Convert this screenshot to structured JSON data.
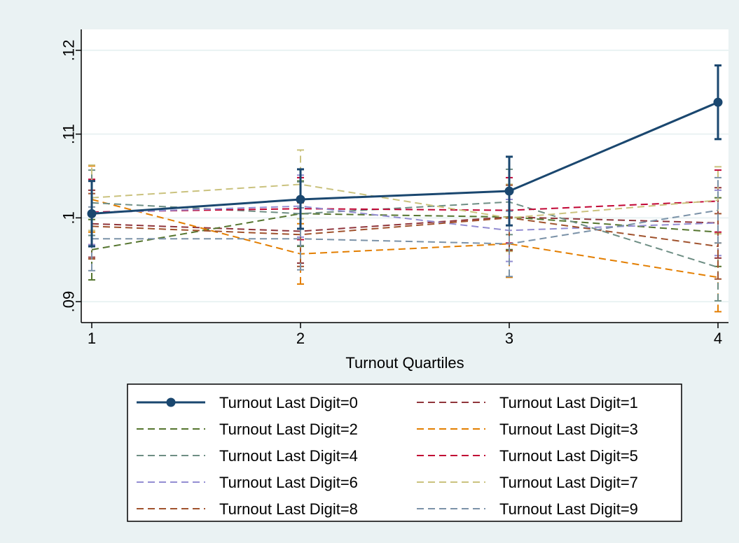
{
  "chart_data": {
    "type": "line",
    "title": "",
    "xlabel": "Turnout Quartiles",
    "ylabel": "",
    "x": [
      1,
      2,
      3,
      4
    ],
    "xlim": [
      1,
      4
    ],
    "ylim": [
      0.0875,
      0.1225
    ],
    "xticks": [
      "1",
      "2",
      "3",
      "4"
    ],
    "yticks": [
      ".09",
      ".1",
      ".11",
      ".12"
    ],
    "ytick_values": [
      0.09,
      0.1,
      0.11,
      0.12
    ],
    "grid": true,
    "legend_position": "bottom",
    "series": [
      {
        "name": "Turnout Last Digit=0",
        "color": "#1a476f",
        "style": "solid-marker",
        "values": [
          0.1005,
          0.1022,
          0.1032,
          0.1138
        ],
        "ci_low": [
          0.0966,
          0.0987,
          0.0991,
          0.1094
        ],
        "ci_high": [
          0.1044,
          0.1058,
          0.1073,
          0.1182
        ]
      },
      {
        "name": "Turnout Last Digit=1",
        "color": "#90353b",
        "style": "dash",
        "values": [
          0.0993,
          0.0984,
          0.1001,
          0.0994
        ],
        "ci_low": [
          0.0953,
          0.0946,
          0.0962,
          0.0952
        ],
        "ci_high": [
          0.1033,
          0.1022,
          0.104,
          0.1036
        ]
      },
      {
        "name": "Turnout Last Digit=2",
        "color": "#55752f",
        "style": "dash",
        "values": [
          0.0962,
          0.1005,
          0.1001,
          0.0983
        ],
        "ci_low": [
          0.0926,
          0.0966,
          0.0962,
          0.0942
        ],
        "ci_high": [
          0.0998,
          0.1044,
          0.104,
          0.1024
        ]
      },
      {
        "name": "Turnout Last Digit=3",
        "color": "#e37e00",
        "style": "dash",
        "values": [
          0.1022,
          0.0957,
          0.0969,
          0.0929
        ],
        "ci_low": [
          0.0983,
          0.0921,
          0.0929,
          0.0888
        ],
        "ci_high": [
          0.1062,
          0.0993,
          0.1009,
          0.097
        ]
      },
      {
        "name": "Turnout Last Digit=4",
        "color": "#6e8e84",
        "style": "dash",
        "values": [
          0.1018,
          0.1005,
          0.1019,
          0.0941
        ],
        "ci_low": [
          0.0979,
          0.0967,
          0.098,
          0.0901
        ],
        "ci_high": [
          0.1057,
          0.1043,
          0.1058,
          0.0981
        ]
      },
      {
        "name": "Turnout Last Digit=5",
        "color": "#c10534",
        "style": "dash",
        "values": [
          0.1007,
          0.1011,
          0.1009,
          0.102
        ],
        "ci_low": [
          0.0968,
          0.0974,
          0.097,
          0.0983
        ],
        "ci_high": [
          0.1046,
          0.1048,
          0.1048,
          0.1057
        ]
      },
      {
        "name": "Turnout Last Digit=6",
        "color": "#938dd2",
        "style": "dash",
        "values": [
          0.1006,
          0.1014,
          0.0985,
          0.0994
        ],
        "ci_low": [
          0.0968,
          0.0977,
          0.0948,
          0.0955
        ],
        "ci_high": [
          0.1044,
          0.1051,
          0.1022,
          0.1033
        ]
      },
      {
        "name": "Turnout Last Digit=7",
        "color": "#cac27e",
        "style": "dash",
        "values": [
          0.1024,
          0.104,
          0.1,
          0.1021
        ],
        "ci_low": [
          0.0985,
          0.0999,
          0.096,
          0.0981
        ],
        "ci_high": [
          0.1063,
          0.1081,
          0.104,
          0.1061
        ]
      },
      {
        "name": "Turnout Last Digit=8",
        "color": "#a0522d",
        "style": "dash",
        "values": [
          0.099,
          0.098,
          0.1,
          0.0966
        ],
        "ci_low": [
          0.0951,
          0.0942,
          0.0961,
          0.0927
        ],
        "ci_high": [
          0.1029,
          0.1018,
          0.1039,
          0.1005
        ]
      },
      {
        "name": "Turnout Last Digit=9",
        "color": "#7b92a8",
        "style": "dash",
        "values": [
          0.0975,
          0.0975,
          0.0969,
          0.1009
        ],
        "ci_low": [
          0.0937,
          0.0938,
          0.093,
          0.097
        ],
        "ci_high": [
          0.1013,
          0.1012,
          0.1008,
          0.1048
        ]
      }
    ]
  }
}
